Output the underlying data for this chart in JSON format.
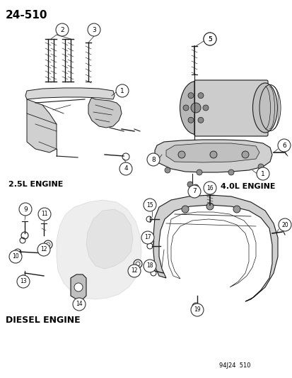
{
  "title": "24-510",
  "bg_color": "#ffffff",
  "line_color": "#1a1a1a",
  "text_color": "#000000",
  "footer": "94J24  510",
  "label_2p5": "2.5L ENGINE",
  "label_4p0": "4.0L ENGINE",
  "label_diesel": "DIESEL ENGINE"
}
